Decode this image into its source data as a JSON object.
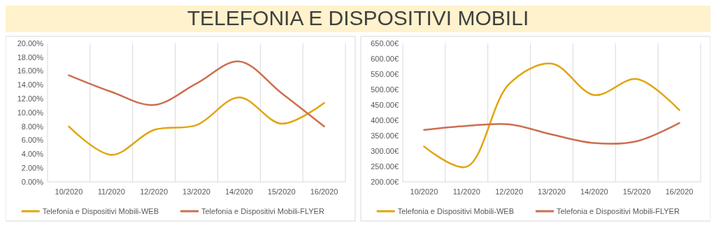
{
  "chart_data": [
    {
      "type": "line",
      "title": "TELEFONIA E DISPOSITIVI MOBILI",
      "categories": [
        "10/2020",
        "11/2020",
        "12/2020",
        "13/2020",
        "14/2020",
        "15/2020",
        "16/2020"
      ],
      "series": [
        {
          "name": "Telefonia e Dispositivi Mobili-WEB",
          "color": "#e0a50c",
          "values": [
            8.0,
            3.9,
            7.5,
            8.2,
            12.2,
            8.4,
            11.4
          ]
        },
        {
          "name": "Telefonia e Dispositivi Mobili-FLYER",
          "color": "#cd6e4f",
          "values": [
            15.4,
            13.0,
            11.1,
            14.2,
            17.4,
            12.8,
            8.0
          ]
        }
      ],
      "ylim": [
        0,
        20
      ],
      "yticks": [
        {
          "value": 0,
          "label": "0.00%"
        },
        {
          "value": 2,
          "label": "2.00%"
        },
        {
          "value": 4,
          "label": "4.00%"
        },
        {
          "value": 6,
          "label": "6.00%"
        },
        {
          "value": 8,
          "label": "8.00%"
        },
        {
          "value": 10,
          "label": "10.00%"
        },
        {
          "value": 12,
          "label": "12.00%"
        },
        {
          "value": 14,
          "label": "14.00%"
        },
        {
          "value": 16,
          "label": "16.00%"
        },
        {
          "value": 18,
          "label": "18.00%"
        },
        {
          "value": 20,
          "label": "20.00%"
        }
      ],
      "grid": "x",
      "legend": "bottom",
      "marker": "none",
      "line_style": "solid"
    },
    {
      "type": "line",
      "categories": [
        "10/2020",
        "11/2020",
        "12/2020",
        "13/2020",
        "14/2020",
        "15/2020",
        "16/2020"
      ],
      "series": [
        {
          "name": "Telefonia e Dispositivi Mobili-WEB",
          "color": "#e0a50c",
          "values": [
            315,
            249,
            518,
            584,
            482,
            534,
            433
          ]
        },
        {
          "name": "Telefonia e Dispositivi Mobili-FLYER",
          "color": "#cd6e4f",
          "values": [
            369,
            382,
            387,
            354,
            326,
            332,
            391
          ]
        }
      ],
      "ylim": [
        200,
        650
      ],
      "yticks": [
        {
          "value": 200,
          "label": "200.00€"
        },
        {
          "value": 250,
          "label": "250.00€"
        },
        {
          "value": 300,
          "label": "300.00€"
        },
        {
          "value": 350,
          "label": "350.00€"
        },
        {
          "value": 400,
          "label": "400.00€"
        },
        {
          "value": 450,
          "label": "450.00€"
        },
        {
          "value": 500,
          "label": "500.00€"
        },
        {
          "value": 550,
          "label": "550.00€"
        },
        {
          "value": 600,
          "label": "600.00€"
        },
        {
          "value": 650,
          "label": "650.00€"
        }
      ],
      "grid": "x",
      "legend": "bottom",
      "marker": "none",
      "line_style": "solid"
    }
  ]
}
